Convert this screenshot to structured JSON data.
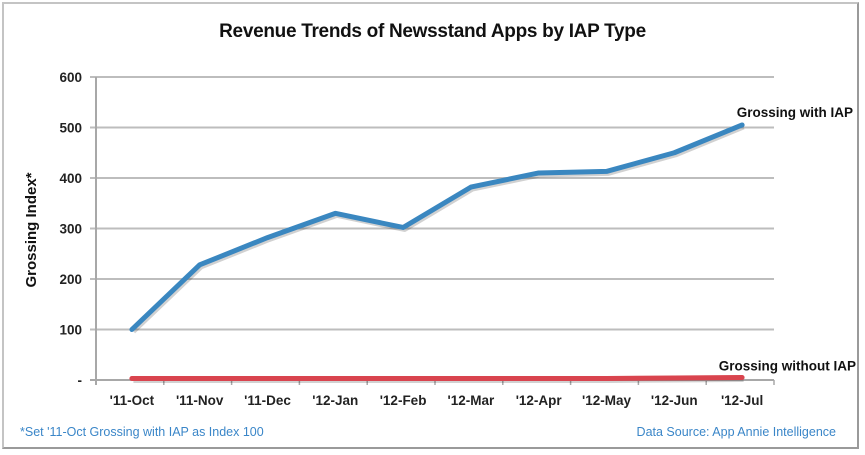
{
  "chart_data": {
    "type": "line",
    "title": "Revenue Trends of Newsstand Apps by IAP Type",
    "xlabel": "",
    "ylabel": "Grossing Index*",
    "ylim": [
      0,
      600
    ],
    "yticks": [
      0,
      100,
      200,
      300,
      400,
      500,
      600
    ],
    "ytick_labels": [
      "-",
      "100",
      "200",
      "300",
      "400",
      "500",
      "600"
    ],
    "grid": true,
    "categories": [
      "'11-Oct",
      "'11-Nov",
      "'11-Dec",
      "'12-Jan",
      "'12-Feb",
      "'12-Mar",
      "'12-Apr",
      "'12-May",
      "'12-Jun",
      "'12-Jul"
    ],
    "series": [
      {
        "name": "Grossing with IAP",
        "color": "#3a87c0",
        "values": [
          100,
          228,
          282,
          330,
          302,
          382,
          410,
          413,
          450,
          505
        ]
      },
      {
        "name": "Grossing without IAP",
        "color": "#d9444e",
        "values": [
          3,
          3,
          3,
          3,
          3,
          3,
          3,
          3,
          4,
          5
        ]
      }
    ],
    "legend": "inline-series-labels-at-right-end",
    "annotations": {
      "footnote": "*Set '11-Oct Grossing with IAP as Index 100",
      "source": "Data Source: App Annie Intelligence"
    }
  }
}
